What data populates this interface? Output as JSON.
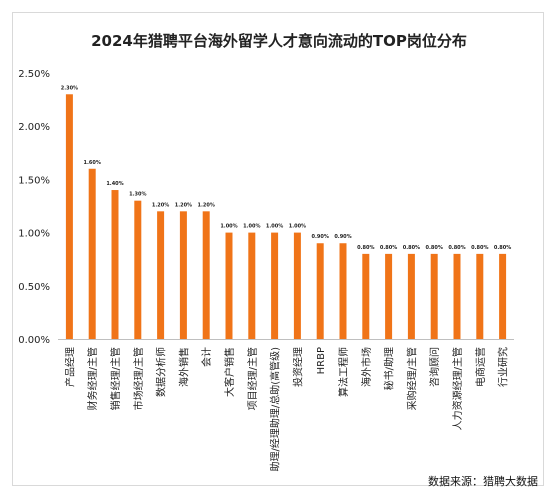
{
  "chart_data": {
    "type": "bar",
    "title": "2024年猎聘平台海外留学人才意向流动的TOP岗位分布",
    "xlabel": "",
    "ylabel": "",
    "ylim": [
      0,
      2.5
    ],
    "yticks": [
      "0.00%",
      "0.50%",
      "1.00%",
      "1.50%",
      "2.00%",
      "2.50%"
    ],
    "y_tick_values": [
      0,
      0.5,
      1.0,
      1.5,
      2.0,
      2.5
    ],
    "grid": false,
    "legend": "none",
    "bar_color": "#F07418",
    "categories": [
      "产品经理",
      "财务经理/主管",
      "销售经理/主管",
      "市场经理/主管",
      "数据分析师",
      "海外销售",
      "会计",
      "大客户销售",
      "项目经理/主管",
      "助理/经理助理/总助(高管级)",
      "投资经理",
      "HRBP",
      "算法工程师",
      "海外市场",
      "秘书/助理",
      "采购经理/主管",
      "咨询顾问",
      "人力资源经理/主管",
      "电商运营",
      "行业研究"
    ],
    "values": [
      2.3,
      1.6,
      1.4,
      1.3,
      1.2,
      1.2,
      1.2,
      1.0,
      1.0,
      1.0,
      1.0,
      0.9,
      0.9,
      0.8,
      0.8,
      0.8,
      0.8,
      0.8,
      0.8,
      0.8
    ],
    "data_labels": [
      "2.30%",
      "1.60%",
      "1.40%",
      "1.30%",
      "1.20%",
      "1.20%",
      "1.20%",
      "1.00%",
      "1.00%",
      "1.00%",
      "1.00%",
      "0.90%",
      "0.90%",
      "0.80%",
      "0.80%",
      "0.80%",
      "0.80%",
      "0.80%",
      "0.80%",
      "0.80%"
    ]
  },
  "source_note": "数据来源：猎聘大数据"
}
